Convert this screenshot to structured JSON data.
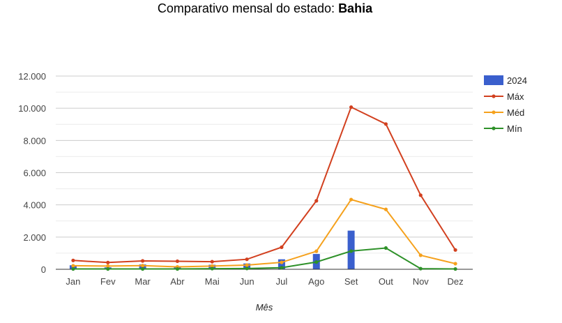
{
  "chart_data": {
    "type": "line",
    "title_prefix": "Comparativo mensal do estado:",
    "title_state": "Bahia",
    "xlabel": "Mês",
    "ylabel": "",
    "ylim": [
      0,
      12000
    ],
    "y_ticks": [
      0,
      2000,
      4000,
      6000,
      8000,
      10000,
      12000
    ],
    "y_tick_labels": [
      "0",
      "2.000",
      "4.000",
      "6.000",
      "8.000",
      "10.000",
      "12.000"
    ],
    "grid": true,
    "legend_position": "right",
    "categories": [
      "Jan",
      "Fev",
      "Mar",
      "Abr",
      "Mai",
      "Jun",
      "Jul",
      "Ago",
      "Set",
      "Out",
      "Nov",
      "Dez"
    ],
    "series": [
      {
        "name": "2024",
        "kind": "bar",
        "color": "#3a5fcd",
        "values": [
          250,
          120,
          300,
          150,
          280,
          360,
          620,
          950,
          2400,
          0,
          0,
          0
        ]
      },
      {
        "name": "Máx",
        "kind": "line",
        "color": "#d2401f",
        "values": [
          550,
          420,
          520,
          500,
          470,
          620,
          1370,
          4250,
          10070,
          9020,
          4600,
          1200
        ]
      },
      {
        "name": "Méd",
        "kind": "line",
        "color": "#f5a11c",
        "values": [
          220,
          200,
          230,
          150,
          200,
          260,
          430,
          1120,
          4330,
          3720,
          870,
          350
        ]
      },
      {
        "name": "Mín",
        "kind": "line",
        "color": "#2e9129",
        "values": [
          20,
          20,
          20,
          20,
          40,
          50,
          100,
          450,
          1130,
          1320,
          40,
          20
        ]
      }
    ]
  }
}
